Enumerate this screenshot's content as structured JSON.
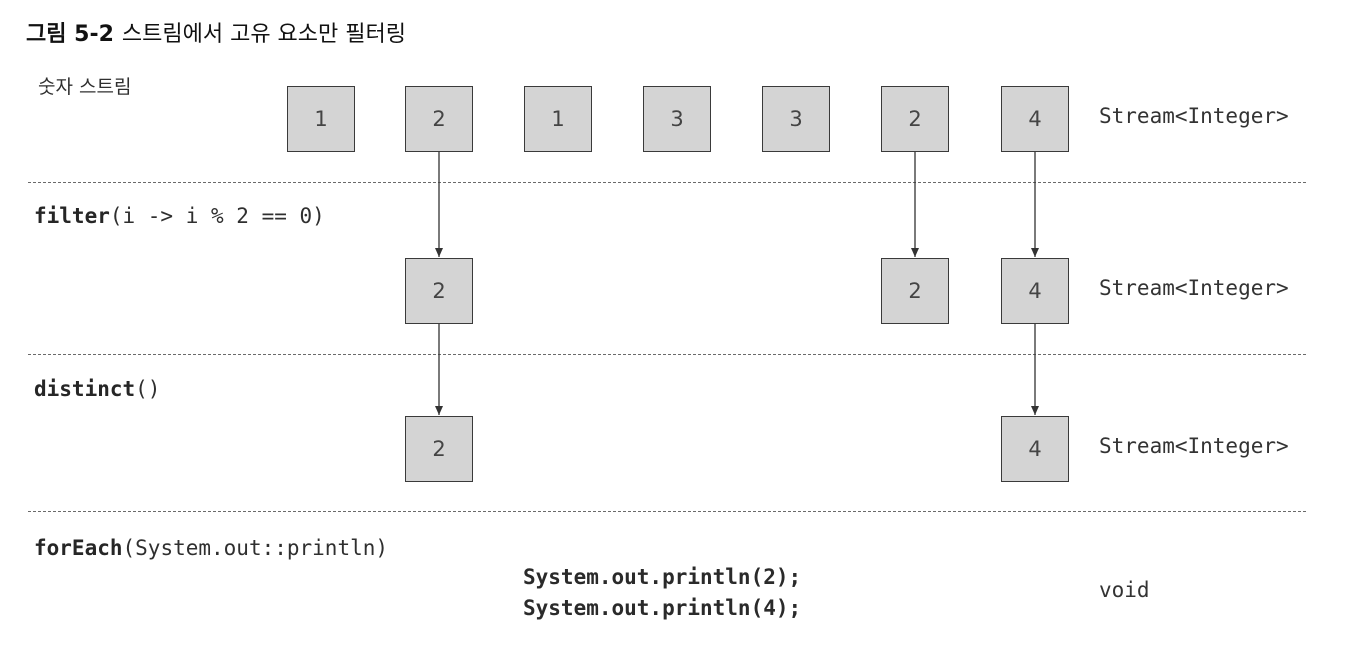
{
  "figure": {
    "number": "그림 5-2",
    "caption": "스트림에서 고유 요소만 필터링"
  },
  "rows": {
    "source": {
      "label": "숫자 스트림",
      "values": [
        "1",
        "2",
        "1",
        "3",
        "3",
        "2",
        "4"
      ],
      "type": "Stream<Integer>"
    },
    "filter": {
      "method": "filter",
      "args": "(i -> i % 2 == 0)",
      "values": [
        "2",
        "2",
        "4"
      ],
      "type": "Stream<Integer>"
    },
    "distinct": {
      "method": "distinct",
      "args": "()",
      "values": [
        "2",
        "4"
      ],
      "type": "Stream<Integer>"
    },
    "forEach": {
      "method": "forEach",
      "args": "(System.out::println)",
      "outputs": [
        "System.out.println(2);",
        "System.out.println(4);"
      ],
      "type": "void"
    }
  },
  "colors": {
    "box_fill": "#d4d4d4",
    "box_border": "#3a3a3a",
    "text": "#2a2a2a"
  }
}
